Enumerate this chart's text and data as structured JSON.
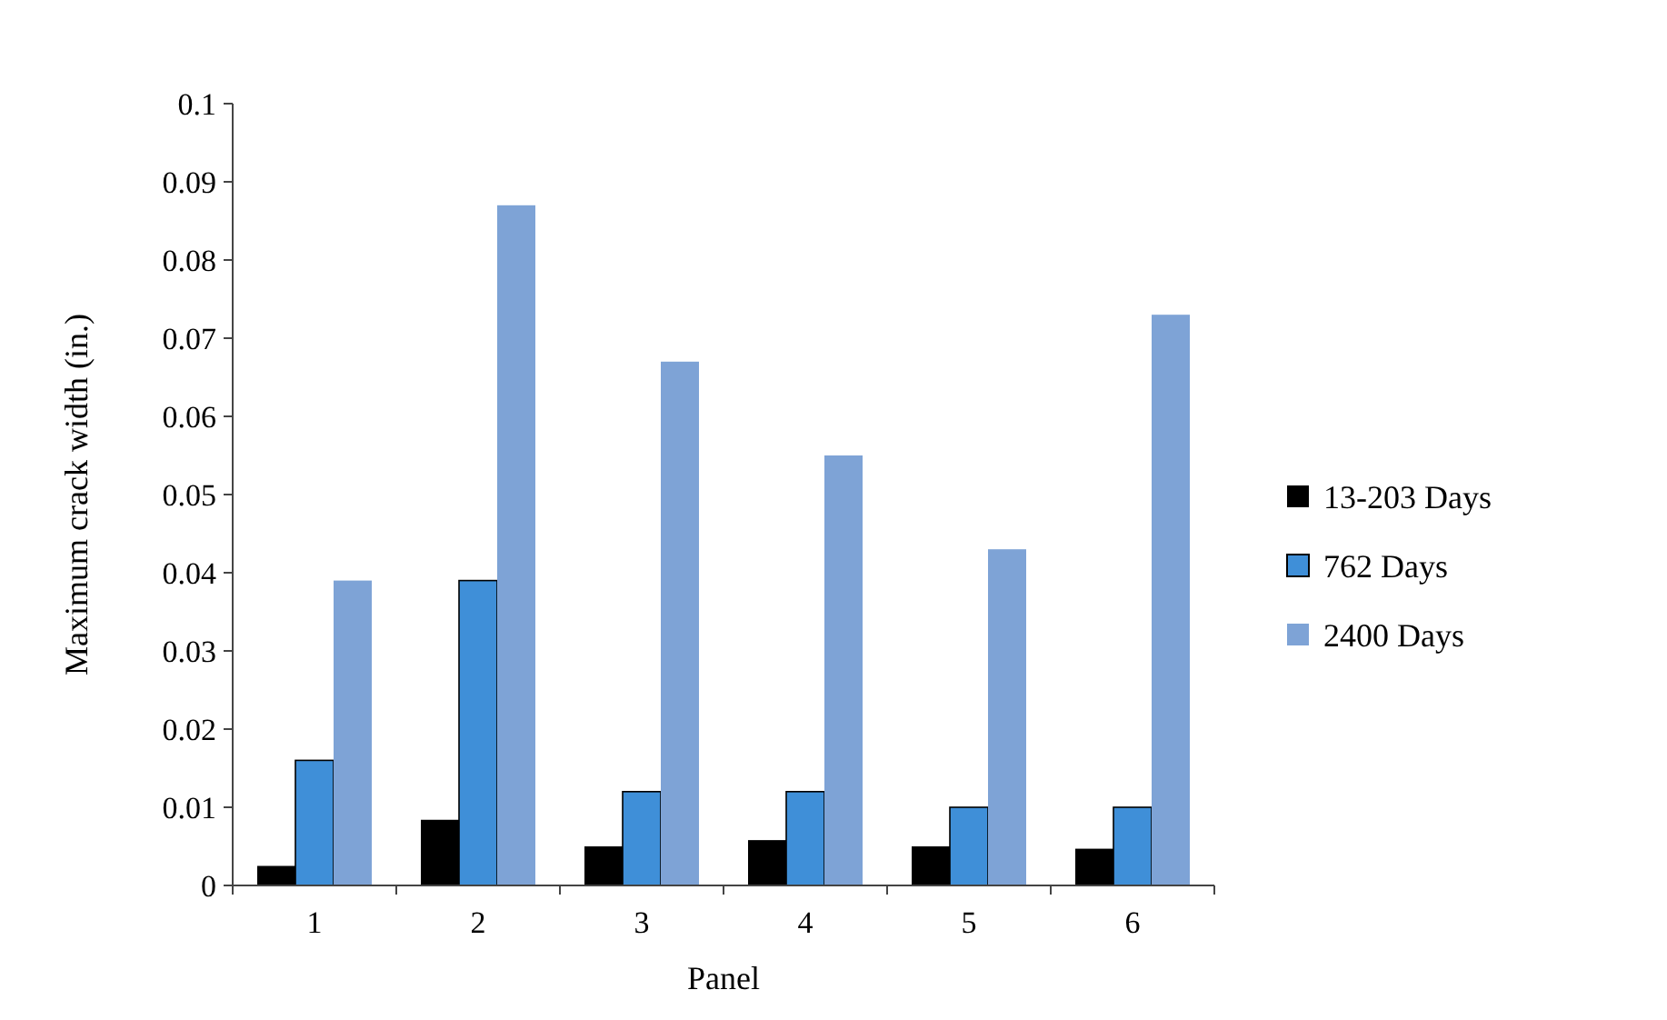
{
  "chart_data": {
    "type": "bar",
    "xlabel": "Panel",
    "ylabel": "Maximum crack width (in.)",
    "categories": [
      "1",
      "2",
      "3",
      "4",
      "5",
      "6"
    ],
    "series": [
      {
        "name": "13-203 Days",
        "color": "#000000",
        "values": [
          0.0025,
          0.0084,
          0.005,
          0.0058,
          0.005,
          0.0047
        ]
      },
      {
        "name": "762 Days",
        "color": "#3f8fd8",
        "values": [
          0.016,
          0.039,
          0.012,
          0.012,
          0.01,
          0.01
        ]
      },
      {
        "name": "2400 Days",
        "color": "#7ea3d6",
        "values": [
          0.039,
          0.087,
          0.067,
          0.055,
          0.043,
          0.073
        ]
      }
    ],
    "ylim": [
      0,
      0.1
    ],
    "yticks": [
      0,
      0.01,
      0.02,
      0.03,
      0.04,
      0.05,
      0.06,
      0.07,
      0.08,
      0.09,
      0.1
    ],
    "grid": false,
    "legend": "right"
  }
}
